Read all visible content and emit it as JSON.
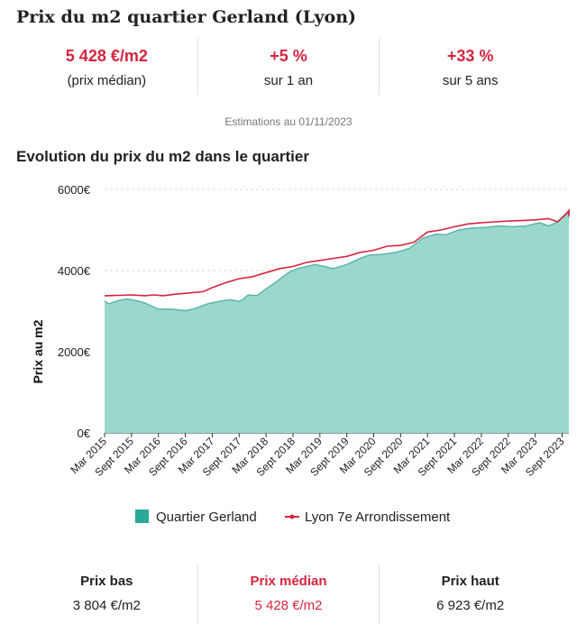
{
  "title": "Prix du m2 quartier Gerland (Lyon)",
  "stats": [
    {
      "value": "5 428 €/m2",
      "label": "(prix médian)"
    },
    {
      "value": "+5 %",
      "label": "sur 1 an"
    },
    {
      "value": "+33 %",
      "label": "sur 5 ans"
    }
  ],
  "estimation": "Estimations au 01/11/2023",
  "subtitle": "Evolution du prix du m2 dans le quartier",
  "bottom": {
    "low": {
      "label": "Prix bas",
      "value": "3 804 €/m2"
    },
    "median": {
      "label": "Prix médian",
      "value": "5 428 €/m2"
    },
    "high": {
      "label": "Prix haut",
      "value": "6 923 €/m2"
    }
  },
  "colors": {
    "accent": "#d6253f",
    "area_fill": "#9ad8ce",
    "area_stroke": "#5fb5a8",
    "legend_area": "#2aa898"
  },
  "chart_data": {
    "type": "area",
    "ylabel": "Prix au m2",
    "ylim": [
      0,
      6000
    ],
    "yticks": [
      0,
      2000,
      4000,
      6000
    ],
    "ytick_labels": [
      "0€",
      "2000€",
      "4000€",
      "6000€"
    ],
    "x_start": "2015-03",
    "x_end": "2023-11",
    "xtick_labels": [
      "Mar 2015",
      "Sept 2015",
      "Mar 2016",
      "Sept 2016",
      "Mar 2017",
      "Sept 2017",
      "Mar 2018",
      "Sept 2018",
      "Mar 2019",
      "Sept 2019",
      "Mar 2020",
      "Sept 2020",
      "Mar 2021",
      "Sept 2021",
      "Mar 2022",
      "Sept 2022",
      "Mar 2023",
      "Sept 2023"
    ],
    "legend": "bottom",
    "series": [
      {
        "name": "Quartier Gerland",
        "kind": "area",
        "points": [
          [
            "2015-03",
            3250
          ],
          [
            "2015-04",
            3180
          ],
          [
            "2015-06",
            3260
          ],
          [
            "2015-08",
            3300
          ],
          [
            "2015-10",
            3260
          ],
          [
            "2015-12",
            3200
          ],
          [
            "2016-02",
            3100
          ],
          [
            "2016-03",
            3050
          ],
          [
            "2016-06",
            3050
          ],
          [
            "2016-09",
            3010
          ],
          [
            "2016-11",
            3060
          ],
          [
            "2017-02",
            3180
          ],
          [
            "2017-05",
            3250
          ],
          [
            "2017-07",
            3280
          ],
          [
            "2017-09",
            3240
          ],
          [
            "2017-10",
            3300
          ],
          [
            "2017-11",
            3400
          ],
          [
            "2018-01",
            3380
          ],
          [
            "2018-03",
            3550
          ],
          [
            "2018-05",
            3700
          ],
          [
            "2018-08",
            3950
          ],
          [
            "2018-10",
            4050
          ],
          [
            "2018-12",
            4100
          ],
          [
            "2019-02",
            4150
          ],
          [
            "2019-04",
            4100
          ],
          [
            "2019-06",
            4050
          ],
          [
            "2019-09",
            4150
          ],
          [
            "2019-12",
            4300
          ],
          [
            "2020-02",
            4380
          ],
          [
            "2020-05",
            4400
          ],
          [
            "2020-08",
            4450
          ],
          [
            "2020-11",
            4550
          ],
          [
            "2021-02",
            4800
          ],
          [
            "2021-05",
            4900
          ],
          [
            "2021-07",
            4880
          ],
          [
            "2021-10",
            5000
          ],
          [
            "2022-01",
            5050
          ],
          [
            "2022-04",
            5060
          ],
          [
            "2022-07",
            5100
          ],
          [
            "2022-10",
            5080
          ],
          [
            "2023-01",
            5100
          ],
          [
            "2023-04",
            5180
          ],
          [
            "2023-06",
            5100
          ],
          [
            "2023-08",
            5200
          ],
          [
            "2023-10",
            5420
          ],
          [
            "2023-12",
            5450
          ],
          [
            "2024-02",
            5430
          ],
          [
            "2024-04",
            5300
          ],
          [
            "2024-05",
            5380
          ]
        ]
      },
      {
        "name": "Lyon 7e Arrondissement",
        "kind": "line",
        "points": [
          [
            "2015-03",
            3380
          ],
          [
            "2015-06",
            3390
          ],
          [
            "2015-09",
            3400
          ],
          [
            "2015-12",
            3380
          ],
          [
            "2016-02",
            3400
          ],
          [
            "2016-04",
            3380
          ],
          [
            "2016-07",
            3420
          ],
          [
            "2016-10",
            3450
          ],
          [
            "2017-01",
            3480
          ],
          [
            "2017-03",
            3580
          ],
          [
            "2017-06",
            3700
          ],
          [
            "2017-09",
            3800
          ],
          [
            "2017-12",
            3850
          ],
          [
            "2018-03",
            3950
          ],
          [
            "2018-06",
            4050
          ],
          [
            "2018-09",
            4100
          ],
          [
            "2018-12",
            4200
          ],
          [
            "2019-03",
            4250
          ],
          [
            "2019-06",
            4300
          ],
          [
            "2019-09",
            4350
          ],
          [
            "2019-12",
            4450
          ],
          [
            "2020-03",
            4500
          ],
          [
            "2020-06",
            4600
          ],
          [
            "2020-09",
            4620
          ],
          [
            "2020-12",
            4700
          ],
          [
            "2021-03",
            4950
          ],
          [
            "2021-06",
            5000
          ],
          [
            "2021-09",
            5080
          ],
          [
            "2021-12",
            5150
          ],
          [
            "2022-03",
            5180
          ],
          [
            "2022-06",
            5200
          ],
          [
            "2022-09",
            5220
          ],
          [
            "2022-12",
            5230
          ],
          [
            "2023-03",
            5250
          ],
          [
            "2023-06",
            5280
          ],
          [
            "2023-08",
            5200
          ],
          [
            "2023-10",
            5400
          ],
          [
            "2023-12",
            5480
          ],
          [
            "2024-02",
            5480
          ],
          [
            "2024-04",
            5350
          ],
          [
            "2024-05",
            5420
          ]
        ]
      }
    ]
  }
}
